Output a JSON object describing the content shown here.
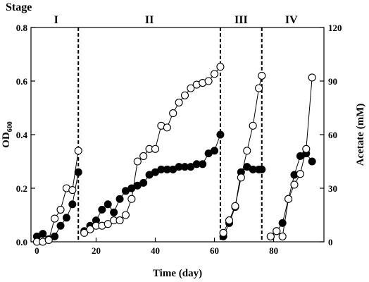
{
  "chart_data": {
    "type": "scatter",
    "title": "",
    "xlabel": "Time (day)",
    "ylabel_left_main": "OD",
    "ylabel_left_sub": "600",
    "ylabel_right": "Acetate (mM)",
    "xlim": [
      -2,
      97
    ],
    "ylim_left": [
      0,
      0.8
    ],
    "ylim_right": [
      0,
      120
    ],
    "x_ticks": [
      0,
      20,
      40,
      60,
      80
    ],
    "y_left_ticks": [
      0.0,
      0.2,
      0.4,
      0.6,
      0.8
    ],
    "y_left_tick_labels": [
      "0.0",
      "0.2",
      "0.4",
      "0.6",
      "0.8"
    ],
    "y_right_ticks": [
      0,
      30,
      60,
      90,
      120
    ],
    "stage_title": "Stage",
    "stages": [
      {
        "label": "I",
        "x": 6.5
      },
      {
        "label": "II",
        "x": 38
      },
      {
        "label": "III",
        "x": 69
      },
      {
        "label": "IV",
        "x": 86
      }
    ],
    "dividers": [
      14,
      62,
      76
    ],
    "series": [
      {
        "marker": "filled",
        "axis": "left",
        "segments": [
          {
            "x": [
              0,
              2,
              4,
              6,
              8,
              10,
              12,
              14
            ],
            "y": [
              0.02,
              0.03,
              0.01,
              0.02,
              0.06,
              0.09,
              0.14,
              0.26
            ]
          },
          {
            "x": [
              16,
              18,
              20,
              22,
              24,
              26,
              28,
              30,
              32,
              34,
              36,
              38,
              40,
              42,
              44,
              46,
              48,
              50,
              52,
              54,
              56,
              58,
              60,
              62
            ],
            "y": [
              0.04,
              0.06,
              0.08,
              0.12,
              0.14,
              0.11,
              0.16,
              0.19,
              0.2,
              0.21,
              0.22,
              0.25,
              0.26,
              0.27,
              0.27,
              0.27,
              0.28,
              0.28,
              0.28,
              0.29,
              0.29,
              0.33,
              0.34,
              0.4
            ]
          },
          {
            "x": [
              63,
              65,
              67,
              69,
              71,
              73,
              75,
              76
            ],
            "y": [
              0.02,
              0.07,
              0.13,
              0.26,
              0.28,
              0.27,
              0.27,
              0.27
            ]
          },
          {
            "x": [
              79,
              81,
              83,
              85,
              87,
              89,
              91,
              93
            ],
            "y": [
              0.02,
              0.04,
              0.07,
              0.16,
              0.25,
              0.32,
              0.33,
              0.3
            ]
          }
        ]
      },
      {
        "marker": "open",
        "axis": "right",
        "segments": [
          {
            "x": [
              0,
              2,
              4,
              6,
              8,
              10,
              12,
              14
            ],
            "y": [
              0,
              0,
              1,
              13,
              18,
              30,
              29,
              51
            ]
          },
          {
            "x": [
              16,
              18,
              20,
              22,
              24,
              26,
              28,
              30,
              32,
              34,
              36,
              38,
              40,
              42,
              44,
              46,
              48,
              50,
              52,
              54,
              56,
              58,
              60,
              62
            ],
            "y": [
              5,
              7,
              9,
              9,
              10,
              12,
              12,
              15,
              24,
              45,
              48,
              52,
              52,
              65,
              64,
              72,
              78,
              82,
              86,
              88,
              89,
              90,
              94,
              98
            ]
          },
          {
            "x": [
              63,
              65,
              67,
              69,
              71,
              73,
              75,
              76
            ],
            "y": [
              5,
              12,
              20,
              36,
              51,
              65,
              86,
              93
            ]
          },
          {
            "x": [
              79,
              81,
              83,
              85,
              87,
              89,
              91,
              93
            ],
            "y": [
              3,
              6,
              3,
              24,
              32,
              38,
              52,
              92
            ]
          }
        ]
      }
    ]
  }
}
